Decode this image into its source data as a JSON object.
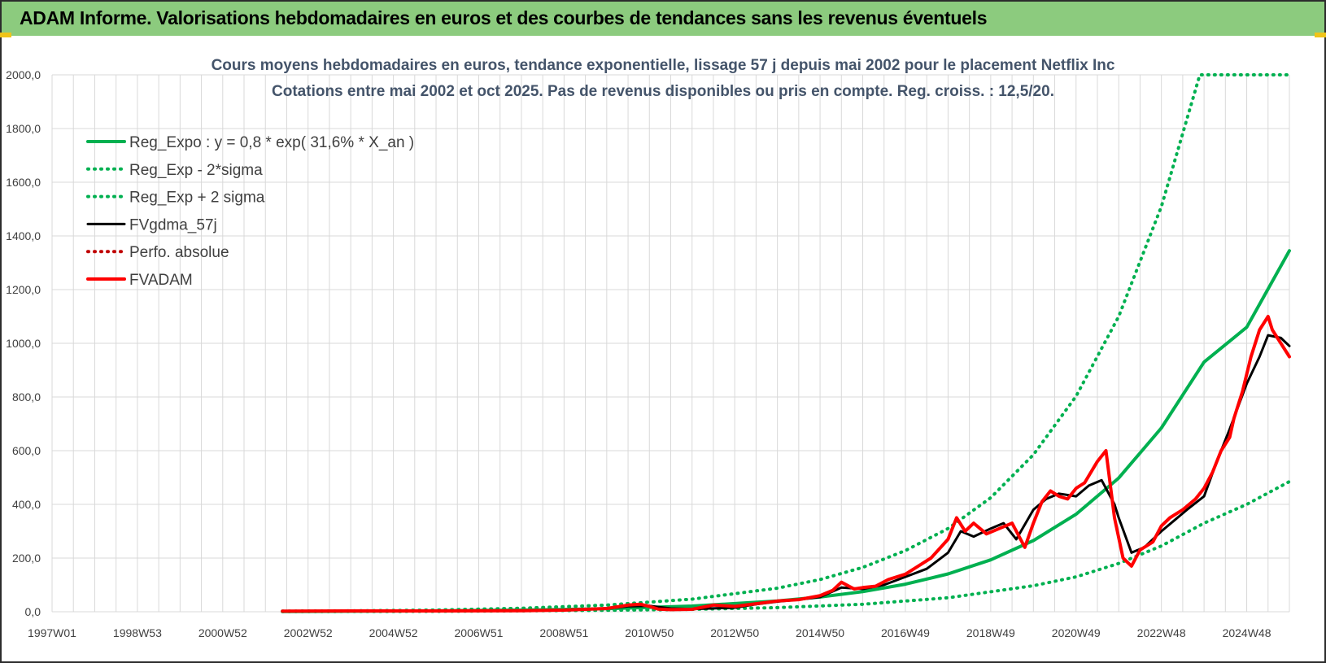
{
  "header": {
    "title": "ADAM Informe. Valorisations hebdomadaires en euros et des courbes de tendances sans les revenus éventuels"
  },
  "colors": {
    "header_bg": "#8ccb7e",
    "trend": "#00b050",
    "smoothed": "#000000",
    "adam": "#ff0000",
    "perfo": "#c00000",
    "grid": "#d9d9d9"
  },
  "chart_data": {
    "type": "line",
    "title": "Cours moyens hebdomadaires en euros, tendance exponentielle, lissage 57 j depuis mai 2002 pour le placement Netflix Inc",
    "subtitle": "Cotations entre mai 2002 et oct 2025. Pas de revenus disponibles ou pris en compte. Reg. croiss. : 12,5/20.",
    "xlabel": "",
    "ylabel": "",
    "x_tick_labels": [
      "1997W01",
      "1998W53",
      "2000W52",
      "2002W52",
      "2004W52",
      "2006W51",
      "2008W51",
      "2010W50",
      "2012W50",
      "2014W50",
      "2016W49",
      "2018W49",
      "2020W49",
      "2022W48",
      "2024W48"
    ],
    "y_tick_labels": [
      "0,0",
      "200,0",
      "400,0",
      "600,0",
      "800,0",
      "1000,0",
      "1200,0",
      "1400,0",
      "1600,0",
      "1800,0",
      "2000,0"
    ],
    "ylim": [
      0,
      2000
    ],
    "xlim": [
      1997.0,
      2026.0
    ],
    "grid": true,
    "legend_position": "top-left",
    "series": [
      {
        "name": "Reg_Expo : y = 0,8 * exp( 31,6% *  X_an )",
        "style": "solid-thick",
        "color": "#00b050",
        "x": [
          2002.4,
          2004,
          2006,
          2008,
          2010,
          2012,
          2014,
          2015,
          2016,
          2017,
          2018,
          2019,
          2020,
          2021,
          2022,
          2023,
          2024,
          2025,
          2026
        ],
        "y": [
          1.0,
          1.7,
          3.2,
          6.0,
          11.3,
          21.2,
          39.9,
          54.7,
          75.0,
          102.8,
          141.0,
          193.3,
          265.0,
          363.3,
          498.2,
          684.8,
          930,
          1060,
          1345
        ]
      },
      {
        "name": "Reg_Exp - 2*sigma",
        "style": "dotted",
        "color": "#00b050",
        "x": [
          2002.4,
          2006,
          2010,
          2012,
          2014,
          2016,
          2018,
          2020,
          2021,
          2022,
          2023,
          2024,
          2025,
          2026
        ],
        "y": [
          0.5,
          1.5,
          5.5,
          9,
          15.5,
          28,
          52,
          97,
          130,
          180,
          245,
          330,
          400,
          485
        ]
      },
      {
        "name": "Reg_Exp + 2 sigma",
        "style": "dotted",
        "color": "#00b050",
        "x": [
          2002.4,
          2004,
          2006,
          2008,
          2010,
          2012,
          2014,
          2015,
          2016,
          2017,
          2018,
          2019,
          2020,
          2021,
          2022,
          2023,
          2023.9,
          2024,
          2026
        ],
        "y": [
          2,
          3.4,
          6.5,
          13,
          25,
          47,
          88,
          120,
          165,
          228,
          310,
          425,
          585,
          803,
          1100,
          1510,
          2000,
          2000,
          2000
        ]
      },
      {
        "name": "FVgdma_57j",
        "style": "solid",
        "color": "#000000",
        "x": [
          2002.4,
          2004,
          2006,
          2008,
          2009,
          2010,
          2010.5,
          2011,
          2011.5,
          2012,
          2013,
          2013.5,
          2014,
          2014.5,
          2015,
          2015.5,
          2016,
          2016.5,
          2017,
          2017.5,
          2018,
          2018.3,
          2018.6,
          2019,
          2019.3,
          2019.6,
          2020,
          2020.3,
          2020.6,
          2021,
          2021.3,
          2021.6,
          2021.9,
          2022,
          2022.3,
          2022.6,
          2023,
          2023.3,
          2023.6,
          2024,
          2024.3,
          2024.6,
          2025,
          2025.3,
          2025.5,
          2025.8,
          2026
        ],
        "y": [
          2,
          2,
          3,
          4,
          6,
          12,
          20,
          22,
          12,
          10,
          15,
          28,
          38,
          45,
          55,
          90,
          85,
          100,
          130,
          160,
          220,
          300,
          280,
          310,
          330,
          270,
          380,
          420,
          440,
          430,
          470,
          490,
          400,
          350,
          220,
          240,
          300,
          340,
          380,
          430,
          560,
          680,
          850,
          950,
          1030,
          1020,
          990
        ]
      },
      {
        "name": "Perfo. absolue",
        "style": "dotted",
        "color": "#c00000",
        "x": [],
        "y": []
      },
      {
        "name": "FVADAM",
        "style": "solid-thick",
        "color": "#ff0000",
        "x": [
          2002.4,
          2004,
          2006,
          2008,
          2009,
          2010,
          2010.5,
          2010.8,
          2011,
          2011.2,
          2011.5,
          2012,
          2012.5,
          2013,
          2013.5,
          2014,
          2014.5,
          2015,
          2015.3,
          2015.5,
          2015.8,
          2016,
          2016.3,
          2016.6,
          2017,
          2017.3,
          2017.6,
          2018,
          2018.2,
          2018.4,
          2018.6,
          2018.9,
          2019.2,
          2019.5,
          2019.8,
          2020,
          2020.2,
          2020.4,
          2020.6,
          2020.8,
          2021,
          2021.2,
          2021.5,
          2021.7,
          2021.9,
          2022.1,
          2022.3,
          2022.5,
          2022.8,
          2023,
          2023.2,
          2023.5,
          2023.8,
          2024,
          2024.2,
          2024.4,
          2024.6,
          2024.7,
          2024.9,
          2025.1,
          2025.3,
          2025.5,
          2025.6,
          2025.8,
          2026
        ],
        "y": [
          2,
          3,
          3,
          4,
          6,
          12,
          25,
          28,
          20,
          10,
          8,
          9,
          25,
          20,
          30,
          40,
          45,
          60,
          80,
          110,
          85,
          90,
          95,
          120,
          140,
          170,
          200,
          270,
          350,
          300,
          330,
          290,
          310,
          330,
          240,
          330,
          410,
          450,
          430,
          420,
          460,
          480,
          560,
          600,
          350,
          200,
          170,
          230,
          260,
          320,
          350,
          380,
          420,
          460,
          520,
          600,
          650,
          720,
          820,
          950,
          1050,
          1100,
          1050,
          1000,
          950
        ]
      }
    ]
  }
}
